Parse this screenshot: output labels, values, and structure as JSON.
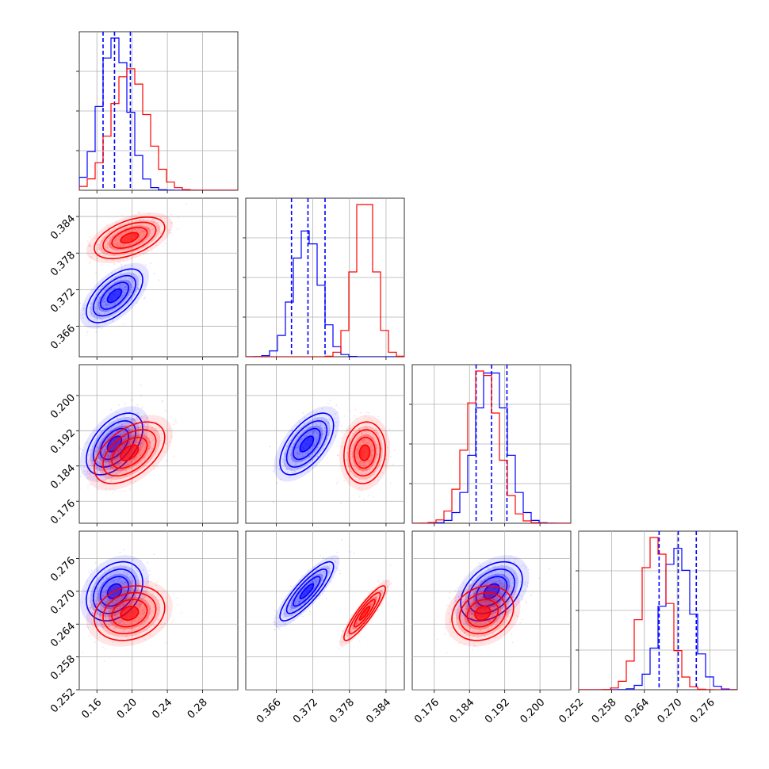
{
  "chart_data": {
    "type": "corner",
    "title": "",
    "parameters": 4,
    "axes": [
      {
        "ticks": [
          "0.16",
          "0.20",
          "0.24",
          "0.28"
        ],
        "range": [
          0.14,
          0.32
        ]
      },
      {
        "ticks": [
          "0.366",
          "0.372",
          "0.378",
          "0.384"
        ],
        "range": [
          0.361,
          0.387
        ]
      },
      {
        "ticks": [
          "0.176",
          "0.184",
          "0.192",
          "0.200"
        ],
        "range": [
          0.171,
          0.207
        ]
      },
      {
        "ticks": [
          "0.252",
          "0.258",
          "0.264",
          "0.270",
          "0.276"
        ],
        "range": [
          0.252,
          0.281
        ]
      }
    ],
    "grid": true,
    "series": [
      {
        "color": "#0000ff",
        "mean": [
          0.18,
          0.371,
          0.189,
          0.27
        ],
        "std": [
          0.016,
          0.0022,
          0.0035,
          0.0027
        ],
        "corr": [
          [
            1,
            0.6,
            0.5,
            0.3
          ],
          [
            0.6,
            1,
            0.6,
            0.85
          ],
          [
            0.5,
            0.6,
            1,
            0.4
          ],
          [
            0.3,
            0.85,
            0.4,
            1
          ]
        ],
        "quantiles": [
          [
            0.167,
            0.18,
            0.198
          ],
          [
            0.3685,
            0.3712,
            0.374
          ],
          [
            0.1855,
            0.189,
            0.1925
          ],
          [
            0.2667,
            0.2702,
            0.2735
          ]
        ]
      },
      {
        "color": "#ff0000",
        "mean": [
          0.197,
          0.3805,
          0.187,
          0.266
        ],
        "std": [
          0.02,
          0.0017,
          0.0035,
          0.0025
        ],
        "corr": [
          [
            1,
            0.5,
            0.5,
            0.2
          ],
          [
            0.5,
            1,
            0.1,
            0.9
          ],
          [
            0.5,
            0.1,
            1,
            0.2
          ],
          [
            0.2,
            0.9,
            0.2,
            1
          ]
        ],
        "quantiles": null
      }
    ]
  }
}
